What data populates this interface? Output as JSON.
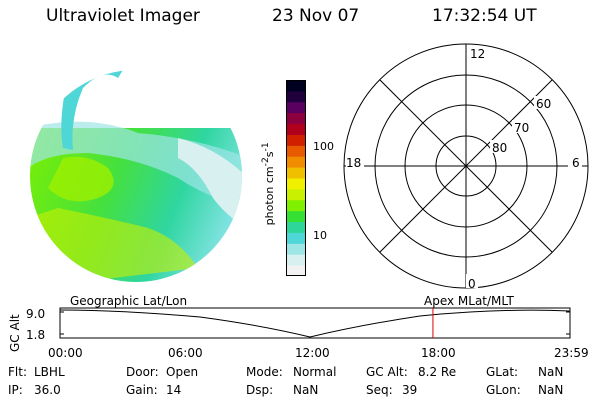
{
  "header": {
    "instrument": "Ultraviolet Imager",
    "date": "23 Nov 07",
    "time": "17:32:54 UT"
  },
  "colorbar": {
    "label_html": "photon cm<sup>-2</sup>s<sup>-1</sup>",
    "ticks": [
      "100",
      "10"
    ],
    "colors": [
      "#f2f2f2",
      "#d8f0f0",
      "#9ee6e6",
      "#4fd6d6",
      "#2fd69a",
      "#33e033",
      "#7ef000",
      "#c8f000",
      "#f0f000",
      "#f0c000",
      "#f08c00",
      "#e85a00",
      "#d02000",
      "#b0001c",
      "#8c0040",
      "#5a0060",
      "#20003c",
      "#000020"
    ]
  },
  "polar": {
    "mlt_labels": {
      "top": "12",
      "left": "18",
      "right": "6",
      "bottom": "0"
    },
    "lat_labels": [
      "60",
      "70",
      "80"
    ]
  },
  "timeline": {
    "left_label": "Geographic Lat/Lon",
    "right_label": "Apex MLat/MLT",
    "axis_title": "GC Alt",
    "y_ticks": [
      "9.0",
      "1.8"
    ],
    "x_ticks": [
      "00:00",
      "06:00",
      "12:00",
      "18:00",
      "23:59"
    ],
    "current_time_hours": 17.55
  },
  "status": {
    "flt_label": "Flt:",
    "flt_value": "LBHL",
    "ip_label": "IP:",
    "ip_value": "36.0",
    "door_label": "Door:",
    "door_value": "Open",
    "gain_label": "Gain:",
    "gain_value": "14",
    "mode_label": "Mode:",
    "mode_value": "Normal",
    "dsp_label": "Dsp:",
    "dsp_value": "NaN",
    "gcalt_label": "GC Alt:",
    "gcalt_value": "8.2 Re",
    "seq_label": "Seq:",
    "seq_value": "39",
    "glat_label": "GLat:",
    "glat_value": "NaN",
    "glon_label": "GLon:",
    "glon_value": "NaN"
  }
}
